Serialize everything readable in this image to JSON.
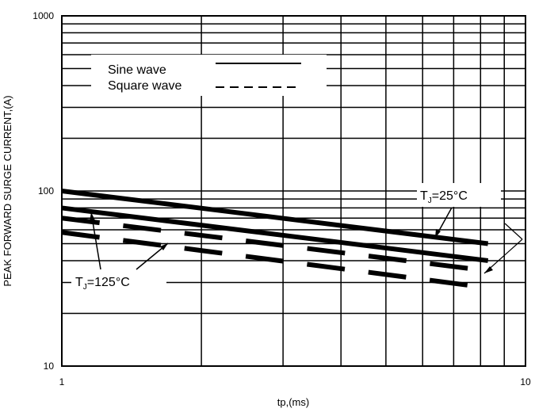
{
  "chart_data": {
    "type": "line",
    "xlabel": "tp,(ms)",
    "ylabel": "PEAK FORWARD SURGE CURRENT,(A)",
    "xscale": "log",
    "yscale": "log",
    "xlim": [
      1,
      10
    ],
    "ylim": [
      10,
      1000
    ],
    "x_ticks": [
      "1",
      "10"
    ],
    "y_ticks": [
      "1000",
      "100",
      "10"
    ],
    "grid": true,
    "legend": {
      "placement": "top-left",
      "entries": [
        {
          "label": "Sine wave",
          "style": "solid"
        },
        {
          "label": "Square wave",
          "style": "dashed"
        }
      ]
    },
    "annotations": [
      {
        "main": "T",
        "sub": "J",
        "rest": "=25°C"
      },
      {
        "main": "T",
        "sub": "J",
        "rest": "=125°C"
      }
    ],
    "series": [
      {
        "style": "solid",
        "x": [
          1,
          8.3
        ],
        "y": [
          100,
          50
        ]
      },
      {
        "style": "solid",
        "x": [
          1,
          8.3
        ],
        "y": [
          80,
          40
        ]
      },
      {
        "style": "dashed",
        "x": [
          1,
          8.3
        ],
        "y": [
          70,
          35
        ]
      },
      {
        "style": "dashed",
        "x": [
          1,
          8.3
        ],
        "y": [
          58,
          28
        ]
      }
    ],
    "colors": {
      "line": "#000000",
      "grid": "#000000",
      "background": "#ffffff"
    }
  }
}
